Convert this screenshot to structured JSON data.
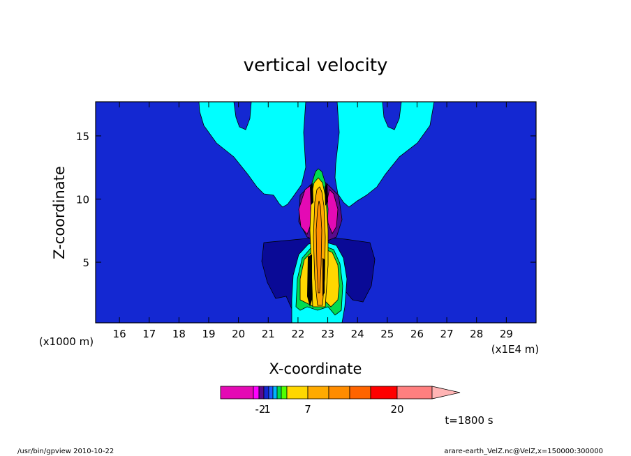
{
  "chart_data": {
    "type": "heatmap",
    "title": "vertical velocity",
    "xlabel": "X-coordinate",
    "ylabel": "Z-coordinate",
    "xlim": [
      15.2,
      30.0
    ],
    "ylim": [
      0.2,
      17.7
    ],
    "x_ticks": [
      16,
      17,
      18,
      19,
      20,
      21,
      22,
      23,
      24,
      25,
      26,
      27,
      28,
      29
    ],
    "y_ticks": [
      5,
      10,
      15
    ],
    "x_scale_note": "(x1E4 m)",
    "y_scale_note": "(x1000 m)",
    "colorbar": {
      "tick_labels": [
        "-2",
        "1",
        "7",
        "20"
      ],
      "colors": [
        "#e40ab4",
        "#ff00ff",
        "#5a0a8c",
        "#1428d2",
        "#1e5aff",
        "#00b4ff",
        "#00dc50",
        "#50ff00",
        "#ffd700",
        "#ffaa00",
        "#ff8c00",
        "#ff6400",
        "#ff0000",
        "#ff7f7f",
        "#ffb4b4"
      ]
    },
    "time_label": "t=1800 s"
  },
  "footer": {
    "left": "/usr/bin/gpview   2010-10-22",
    "right": "arare-earth_VelZ.nc@VelZ,x=150000:300000"
  }
}
